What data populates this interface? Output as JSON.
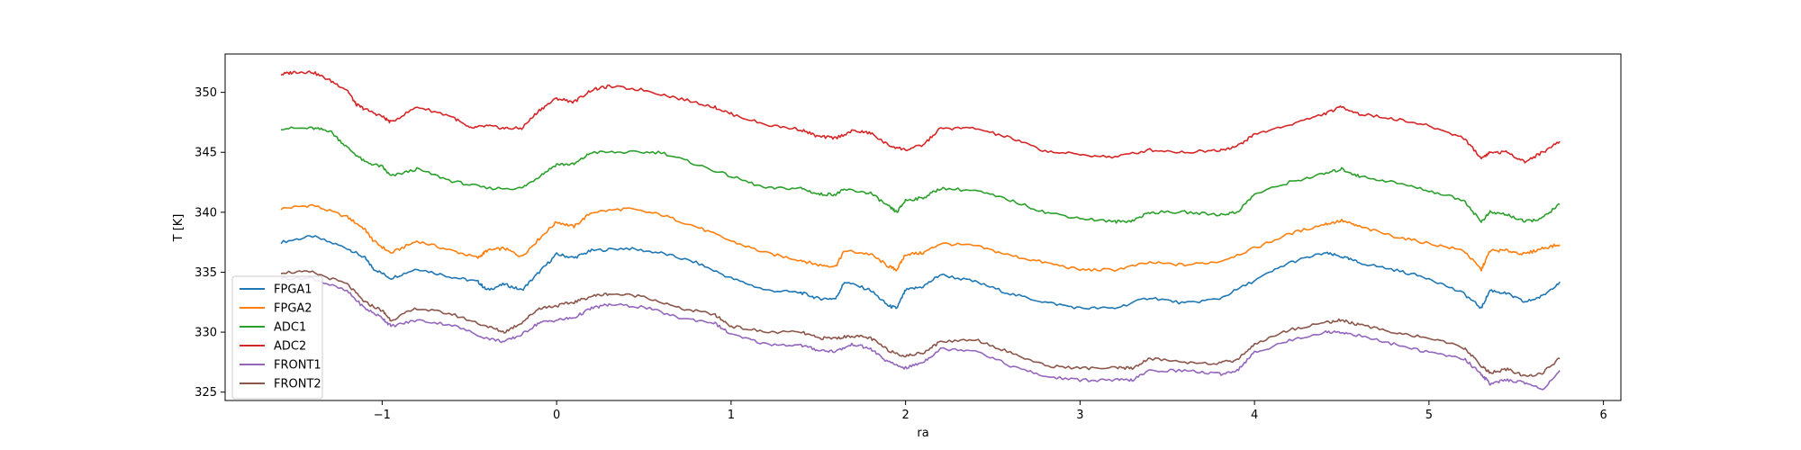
{
  "chart_data": {
    "type": "line",
    "title": "",
    "xlabel": "ra",
    "ylabel": "T [K]",
    "xlim": [
      -1.9,
      6.1
    ],
    "ylim": [
      324.3,
      353.2
    ],
    "xticks": [
      -1,
      0,
      1,
      2,
      3,
      4,
      5,
      6
    ],
    "yticks": [
      325,
      330,
      335,
      340,
      345,
      350
    ],
    "grid": false,
    "legend": "lower-left",
    "series": [
      {
        "name": "FPGA1",
        "color": "#1f77b4",
        "x": [
          -1.58,
          -1.4,
          -1.2,
          -1.1,
          -1.05,
          -0.95,
          -0.8,
          -0.6,
          -0.45,
          -0.4,
          -0.3,
          -0.2,
          -0.1,
          0,
          0.1,
          0.2,
          0.4,
          0.6,
          0.8,
          1.0,
          1.2,
          1.4,
          1.5,
          1.6,
          1.65,
          1.8,
          1.9,
          1.95,
          2.0,
          2.1,
          2.2,
          2.4,
          2.6,
          2.8,
          3.0,
          3.2,
          3.4,
          3.6,
          3.8,
          4.0,
          4.2,
          4.4,
          4.5,
          4.6,
          4.8,
          5.0,
          5.2,
          5.3,
          5.35,
          5.45,
          5.55,
          5.65,
          5.75
        ],
        "y": [
          337.5,
          338.0,
          337.0,
          336.2,
          335.3,
          334.5,
          335.3,
          334.6,
          334.2,
          333.5,
          334.0,
          333.5,
          335.0,
          336.5,
          336.2,
          336.8,
          337.0,
          336.6,
          335.8,
          334.5,
          333.5,
          333.3,
          332.8,
          332.8,
          334.2,
          333.5,
          332.2,
          332.0,
          333.5,
          333.8,
          334.8,
          334.2,
          333.2,
          332.5,
          332.0,
          332.0,
          332.9,
          332.4,
          332.8,
          334.3,
          335.8,
          336.6,
          336.3,
          335.8,
          335.2,
          334.5,
          333.2,
          332.0,
          333.5,
          333.2,
          332.5,
          333.0,
          334.2
        ]
      },
      {
        "name": "FPGA2",
        "color": "#ff7f0e",
        "x": [
          -1.58,
          -1.4,
          -1.2,
          -1.1,
          -1.05,
          -0.95,
          -0.8,
          -0.6,
          -0.45,
          -0.4,
          -0.3,
          -0.2,
          -0.1,
          0,
          0.1,
          0.2,
          0.4,
          0.6,
          0.8,
          1.0,
          1.2,
          1.4,
          1.5,
          1.6,
          1.65,
          1.8,
          1.9,
          1.95,
          2.0,
          2.1,
          2.2,
          2.4,
          2.6,
          2.8,
          3.0,
          3.2,
          3.4,
          3.6,
          3.8,
          4.0,
          4.2,
          4.4,
          4.5,
          4.6,
          4.8,
          5.0,
          5.2,
          5.3,
          5.35,
          5.45,
          5.55,
          5.65,
          5.75
        ],
        "y": [
          340.3,
          340.6,
          339.6,
          338.6,
          337.6,
          336.6,
          337.6,
          336.8,
          336.2,
          336.8,
          337.0,
          336.3,
          337.8,
          339.2,
          338.8,
          340.0,
          340.3,
          339.8,
          338.8,
          337.6,
          336.6,
          336.0,
          335.6,
          335.5,
          336.8,
          336.5,
          335.5,
          335.2,
          336.5,
          336.6,
          337.4,
          337.2,
          336.4,
          335.8,
          335.2,
          335.2,
          335.8,
          335.6,
          335.9,
          337.0,
          338.2,
          339.0,
          339.3,
          338.8,
          338.0,
          337.4,
          336.8,
          335.2,
          336.8,
          336.8,
          336.5,
          337.0,
          337.3
        ]
      },
      {
        "name": "ADC1",
        "color": "#2ca02c",
        "x": [
          -1.58,
          -1.4,
          -1.3,
          -1.2,
          -1.1,
          -1.0,
          -0.95,
          -0.8,
          -0.6,
          -0.4,
          -0.2,
          -0.1,
          0,
          0.1,
          0.2,
          0.4,
          0.6,
          0.8,
          1.0,
          1.2,
          1.4,
          1.5,
          1.6,
          1.65,
          1.8,
          1.9,
          1.95,
          2.0,
          2.1,
          2.2,
          2.4,
          2.6,
          2.8,
          3.0,
          3.2,
          3.3,
          3.4,
          3.6,
          3.8,
          3.9,
          4.0,
          4.2,
          4.4,
          4.5,
          4.6,
          4.8,
          5.0,
          5.2,
          5.3,
          5.35,
          5.45,
          5.55,
          5.65,
          5.75
        ],
        "y": [
          347.0,
          347.0,
          346.8,
          345.4,
          344.2,
          343.8,
          343.0,
          343.6,
          342.6,
          342.0,
          342.0,
          343.0,
          344.0,
          344.0,
          345.0,
          345.0,
          345.0,
          344.0,
          343.0,
          342.0,
          342.0,
          341.5,
          341.5,
          341.9,
          341.6,
          340.5,
          340.0,
          341.0,
          341.2,
          342.0,
          341.8,
          341.0,
          340.0,
          339.5,
          339.2,
          339.3,
          340.0,
          340.0,
          339.8,
          340.0,
          341.5,
          342.5,
          343.2,
          343.6,
          343.0,
          342.5,
          341.8,
          341.0,
          339.2,
          340.0,
          339.8,
          339.2,
          339.5,
          340.7
        ]
      },
      {
        "name": "ADC2",
        "color": "#d62728",
        "x": [
          -1.58,
          -1.5,
          -1.4,
          -1.3,
          -1.2,
          -1.15,
          -1.1,
          -1.0,
          -0.95,
          -0.8,
          -0.6,
          -0.5,
          -0.4,
          -0.3,
          -0.2,
          -0.1,
          0,
          0.1,
          0.2,
          0.3,
          0.5,
          0.7,
          0.9,
          1.0,
          1.2,
          1.4,
          1.5,
          1.6,
          1.7,
          1.8,
          1.9,
          2.0,
          2.1,
          2.2,
          2.4,
          2.6,
          2.8,
          3.0,
          3.2,
          3.4,
          3.6,
          3.8,
          3.9,
          4.0,
          4.2,
          4.4,
          4.5,
          4.6,
          4.8,
          5.0,
          5.2,
          5.3,
          5.35,
          5.45,
          5.55,
          5.65,
          5.75
        ],
        "y": [
          351.5,
          351.7,
          351.7,
          351.0,
          350.2,
          349.0,
          348.6,
          348.0,
          347.5,
          348.8,
          348.0,
          347.0,
          347.2,
          347.0,
          347.0,
          348.5,
          349.5,
          349.2,
          350.2,
          350.5,
          350.2,
          349.5,
          348.8,
          348.2,
          347.3,
          346.9,
          346.3,
          346.2,
          346.8,
          346.6,
          345.6,
          345.2,
          345.6,
          347.0,
          347.0,
          346.2,
          345.1,
          344.8,
          344.6,
          345.2,
          345.0,
          345.2,
          345.5,
          346.5,
          347.3,
          348.2,
          348.8,
          348.2,
          347.8,
          347.2,
          346.2,
          344.5,
          345.0,
          345.0,
          344.2,
          345.0,
          345.9
        ]
      },
      {
        "name": "FRONT1",
        "color": "#9467bd",
        "x": [
          -1.58,
          -1.4,
          -1.2,
          -1.1,
          -1.0,
          -0.95,
          -0.8,
          -0.6,
          -0.4,
          -0.3,
          -0.2,
          -0.1,
          0,
          0.1,
          0.2,
          0.3,
          0.5,
          0.7,
          0.9,
          1.0,
          1.2,
          1.4,
          1.5,
          1.6,
          1.7,
          1.8,
          1.9,
          2.0,
          2.1,
          2.2,
          2.4,
          2.6,
          2.8,
          3.0,
          3.2,
          3.3,
          3.4,
          3.6,
          3.8,
          3.9,
          4.0,
          4.2,
          4.4,
          4.5,
          4.6,
          4.8,
          5.0,
          5.2,
          5.3,
          5.35,
          5.45,
          5.55,
          5.65,
          5.75
        ],
        "y": [
          334.5,
          334.5,
          333.4,
          332.0,
          331.2,
          330.5,
          331.0,
          330.6,
          329.5,
          329.2,
          329.8,
          330.8,
          331.0,
          331.2,
          332.0,
          332.3,
          332.1,
          331.2,
          330.8,
          329.8,
          329.0,
          328.9,
          328.5,
          328.4,
          329.0,
          328.6,
          327.5,
          327.0,
          327.5,
          328.6,
          328.5,
          327.2,
          326.3,
          326.0,
          326.0,
          326.0,
          326.8,
          326.8,
          326.5,
          326.8,
          328.3,
          329.3,
          330.0,
          330.0,
          329.7,
          329.0,
          328.3,
          327.8,
          326.5,
          325.7,
          326.0,
          325.8,
          325.2,
          326.8
        ]
      },
      {
        "name": "FRONT2",
        "color": "#8c564b",
        "x": [
          -1.58,
          -1.4,
          -1.2,
          -1.1,
          -1.0,
          -0.95,
          -0.8,
          -0.6,
          -0.4,
          -0.3,
          -0.2,
          -0.1,
          0,
          0.1,
          0.2,
          0.3,
          0.5,
          0.7,
          0.9,
          1.0,
          1.2,
          1.4,
          1.5,
          1.6,
          1.7,
          1.8,
          1.9,
          2.0,
          2.1,
          2.2,
          2.4,
          2.6,
          2.8,
          3.0,
          3.2,
          3.3,
          3.4,
          3.6,
          3.8,
          3.9,
          4.0,
          4.2,
          4.4,
          4.5,
          4.6,
          4.8,
          5.0,
          5.2,
          5.3,
          5.35,
          5.45,
          5.55,
          5.65,
          5.75
        ],
        "y": [
          335.0,
          335.0,
          334.0,
          332.5,
          331.8,
          331.0,
          332.0,
          331.5,
          330.5,
          330.0,
          330.8,
          332.0,
          332.2,
          332.5,
          333.0,
          333.2,
          333.0,
          332.0,
          331.5,
          330.5,
          330.0,
          330.0,
          329.5,
          329.5,
          329.7,
          329.5,
          328.5,
          328.0,
          328.3,
          329.2,
          329.4,
          328.3,
          327.2,
          327.0,
          327.0,
          327.0,
          327.8,
          327.5,
          327.4,
          327.7,
          329.0,
          330.2,
          330.8,
          331.0,
          330.6,
          330.0,
          329.5,
          328.7,
          327.2,
          326.6,
          326.9,
          326.3,
          326.6,
          327.8
        ]
      }
    ]
  }
}
